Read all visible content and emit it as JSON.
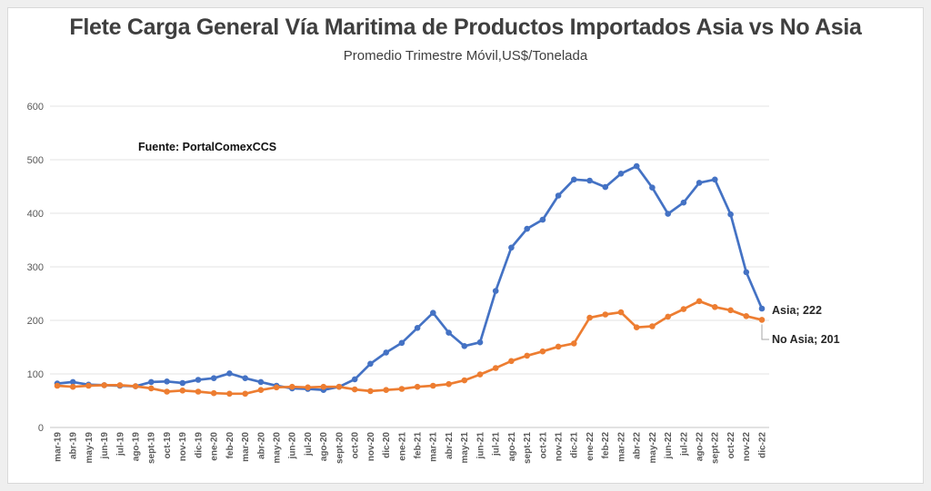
{
  "window": {
    "background_color": "#efefef",
    "panel_color": "#ffffff",
    "panel_border_color": "#d9d9d9"
  },
  "header": {
    "title": "Flete Carga General Vía Maritima de Productos Importados Asia vs No Asia",
    "subtitle": "Promedio Trimestre Móvil,US$/Tonelada"
  },
  "chart_data": {
    "type": "line",
    "title": "Flete Carga General Vía Maritima de Productos Importados Asia vs No Asia",
    "subtitle": "Promedio Trimestre Móvil,US$/Tonelada",
    "source_note": "Fuente: PortalComexCCS",
    "grid": true,
    "ylim": [
      0,
      600
    ],
    "yticks": [
      0,
      100,
      200,
      300,
      400,
      500,
      600
    ],
    "x_label_rotation": -90,
    "legend_position": "end-of-line-labels",
    "axis_label_color": "#595959",
    "gridline_color": "#e3e3e3",
    "baseline_color": "#c6c6c6",
    "categories": [
      "mar-19",
      "abr-19",
      "may-19",
      "jun-19",
      "jul-19",
      "ago-19",
      "sept-19",
      "oct-19",
      "nov-19",
      "dic-19",
      "ene-20",
      "feb-20",
      "mar-20",
      "abr-20",
      "may-20",
      "jun-20",
      "jul-20",
      "ago-20",
      "sept-20",
      "oct-20",
      "nov-20",
      "dic-20",
      "ene-21",
      "feb-21",
      "mar-21",
      "abr-21",
      "may-21",
      "jun-21",
      "jul-21",
      "ago-21",
      "sept-21",
      "oct-21",
      "nov-21",
      "dic-21",
      "ene-22",
      "feb-22",
      "mar-22",
      "abr-22",
      "may-22",
      "jun-22",
      "jul-22",
      "ago-22",
      "sept-22",
      "oct-22",
      "nov-22",
      "dic-22"
    ],
    "series": [
      {
        "name": "Asia",
        "color": "#4472C4",
        "end_label": "Asia; 222",
        "values": [
          82,
          85,
          80,
          79,
          78,
          77,
          85,
          86,
          83,
          89,
          92,
          101,
          92,
          85,
          78,
          73,
          72,
          70,
          76,
          90,
          119,
          140,
          158,
          186,
          214,
          177,
          152,
          159,
          255,
          336,
          371,
          388,
          433,
          463,
          461,
          449,
          474,
          488,
          448,
          399,
          420,
          457,
          463,
          398,
          290,
          222
        ]
      },
      {
        "name": "No Asia",
        "color": "#ED7D31",
        "end_label": "No Asia; 201",
        "values": [
          78,
          76,
          78,
          79,
          79,
          77,
          73,
          67,
          69,
          67,
          64,
          63,
          63,
          70,
          75,
          76,
          75,
          76,
          76,
          71,
          68,
          70,
          72,
          76,
          78,
          81,
          88,
          99,
          111,
          124,
          134,
          142,
          151,
          157,
          205,
          211,
          215,
          187,
          189,
          207,
          221,
          236,
          225,
          219,
          208,
          201
        ]
      }
    ]
  }
}
